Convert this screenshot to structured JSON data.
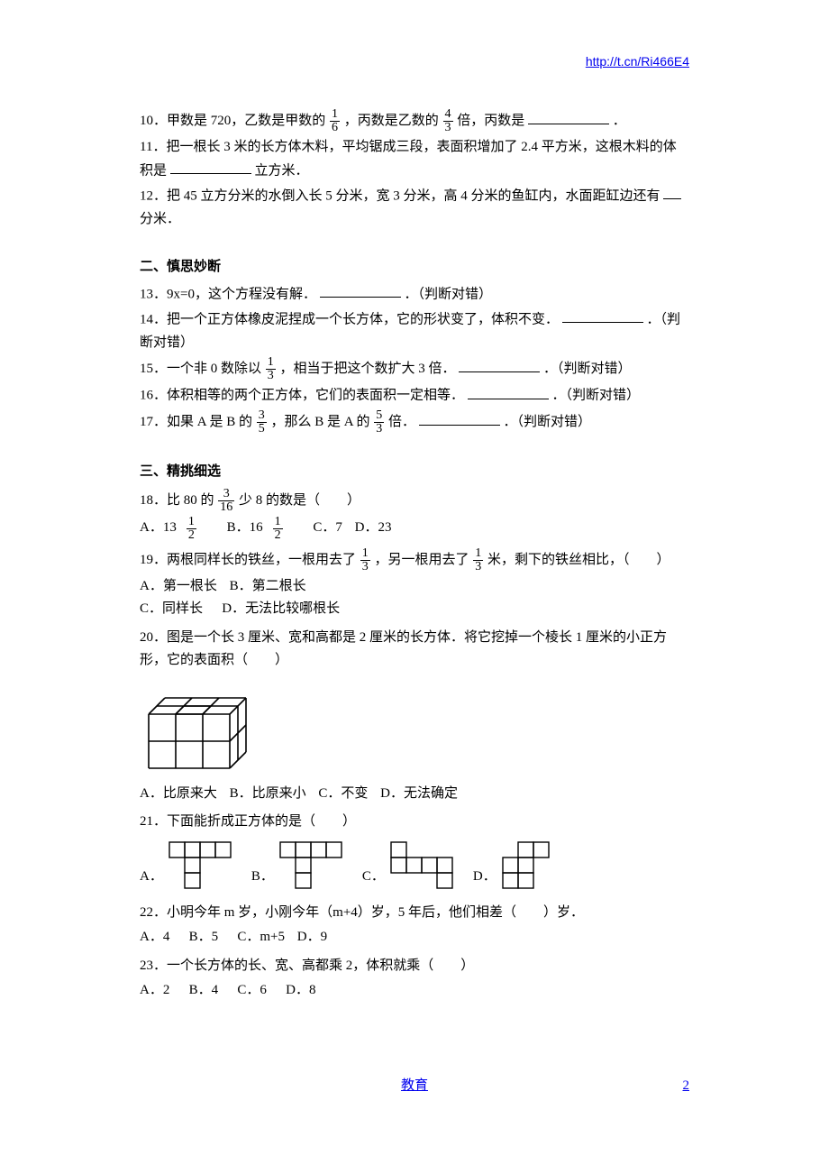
{
  "header": {
    "url": "http://t.cn/Ri466E4"
  },
  "q10": {
    "t1": "10．甲数是 720，乙数是甲数的",
    "f1n": "1",
    "f1d": "6",
    "t2": "，丙数是乙数的",
    "f2n": "4",
    "f2d": "3",
    "t3": "倍，丙数是",
    "t4": "．"
  },
  "q11": {
    "t1": "11．把一根长 3 米的长方体木料，平均锯成三段，表面积增加了 2.4 平方米，这根木料的体积是",
    "t2": "立方米．"
  },
  "q12": {
    "t1": "12．把 45 立方分米的水倒入长 5 分米，宽 3 分米，高 4 分米的鱼缸内，水面距缸边还有",
    "t2": "分米．"
  },
  "sec2": "二、慎思妙断",
  "q13": {
    "t1": "13．9x=0，这个方程没有解．",
    "t2": "．（判断对错）"
  },
  "q14": {
    "t1": "14．把一个正方体橡皮泥捏成一个长方体，它的形状变了，体积不变．",
    "t2": "．（判断对错）"
  },
  "q15": {
    "t1": "15．一个非 0 数除以",
    "fn": "1",
    "fd": "3",
    "t2": "，相当于把这个数扩大 3 倍．",
    "t3": "．（判断对错）"
  },
  "q16": {
    "t1": "16．体积相等的两个正方体，它们的表面积一定相等．",
    "t2": "．（判断对错）"
  },
  "q17": {
    "t1": "17．如果 A 是 B 的",
    "f1n": "3",
    "f1d": "5",
    "t2": "，那么 B 是 A 的",
    "f2n": "5",
    "f2d": "3",
    "t3": "倍．",
    "t4": "．（判断对错）"
  },
  "sec3": "三、精挑细选",
  "q18": {
    "t1": "18．比 80 的",
    "fn": "3",
    "fd": "16",
    "t2": "少 8 的数是（　　）",
    "opts": {
      "a1": "A．13",
      "a1fn": "1",
      "a1fd": "2",
      "b1": " B．16",
      "b1fn": "1",
      "b1fd": "2",
      "c": " C．7",
      "d": "D．23"
    }
  },
  "q19": {
    "t1": "19．两根同样长的铁丝，一根用去了",
    "f1n": "1",
    "f1d": "3",
    "t2": "，另一根用去了",
    "f2n": "1",
    "f2d": "3",
    "t3": "米，剩下的铁丝相比，（　　）",
    "opts": {
      "a": "A．第一根长",
      "b": "B．第二根长",
      "c": "C．同样长",
      "d": "D．无法比较哪根长"
    }
  },
  "q20": {
    "t1": "20．图是一个长 3 厘米、宽和高都是 2 厘米的长方体．将它挖掉一个棱长 1 厘米的小正方形，它的表面积（　　）",
    "opts": {
      "a": "A．比原来大",
      "b": "B．比原来小",
      "c": "C．不变",
      "d": "D．无法确定"
    },
    "diagram": {
      "width": 130,
      "height": 110,
      "stroke": "#000",
      "strokeWidth": 1.6
    }
  },
  "q21": {
    "t1": "21．下面能折成正方体的是（　　）",
    "labels": {
      "a": "A．",
      "b": "B．",
      "c": "C．",
      "d": "D．"
    },
    "cell": 17,
    "stroke": "#000"
  },
  "q22": {
    "t1": "22．小明今年 m 岁，小刚今年（m+4）岁，5 年后，他们相差（　　）岁．",
    "opts": {
      "a": "A．4",
      "b": "B．5",
      "c": "C．m+5",
      "d": "D．9"
    }
  },
  "q23": {
    "t1": "23．一个长方体的长、宽、高都乘 2，体积就乘（　　）",
    "opts": {
      "a": "A．2",
      "b": "B．4",
      "c": "C．6",
      "d": "D．8"
    }
  },
  "footer": {
    "label": "教育",
    "pagenum": "2"
  }
}
